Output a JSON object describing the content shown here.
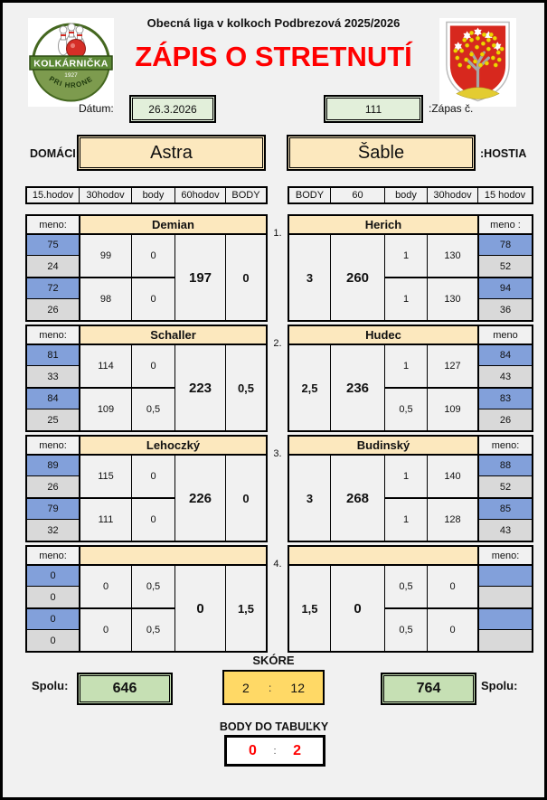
{
  "header": {
    "league_title": "Obecná liga v kolkoch Podbrezová 2025/2026",
    "title": "ZÁPIS O STRETNUTÍ"
  },
  "home_logo": {
    "name": "KOLKÁRNIČKA",
    "year": "1927",
    "subtitle": "PRI HRONE"
  },
  "match_info": {
    "date_label": "Dátum:",
    "date_value": "26.3.2026",
    "match_number": "111",
    "match_number_label": ":Zápas č."
  },
  "teams": {
    "home_label": "DOMÁCI:",
    "home_name": "Astra",
    "away_name": "Šable",
    "away_label": ":HOSTIA"
  },
  "column_headers": {
    "left": [
      "15.hodov",
      "30hodov",
      "body",
      "60hodov",
      "BODY"
    ],
    "right": [
      "BODY",
      "60",
      "body",
      "30hodov",
      "15 hodov"
    ]
  },
  "rounds": [
    {
      "number": "1.",
      "home": {
        "meno_label": "meno:",
        "name": "Demian",
        "t15": [
          "75",
          "24",
          "72",
          "26"
        ],
        "t30": [
          "99",
          "98"
        ],
        "body": [
          "0",
          "0"
        ],
        "t60": "197",
        "points": "0"
      },
      "away": {
        "meno_label": "meno :",
        "name": "Herich",
        "points": "3",
        "t60": "260",
        "body": [
          "1",
          "1"
        ],
        "t30": [
          "130",
          "130"
        ],
        "t15": [
          "78",
          "52",
          "94",
          "36"
        ]
      }
    },
    {
      "number": "2.",
      "home": {
        "meno_label": "meno:",
        "name": "Schaller",
        "t15": [
          "81",
          "33",
          "84",
          "25"
        ],
        "t30": [
          "114",
          "109"
        ],
        "body": [
          "0",
          "0,5"
        ],
        "t60": "223",
        "points": "0,5"
      },
      "away": {
        "meno_label": "meno",
        "name": "Hudec",
        "points": "2,5",
        "t60": "236",
        "body": [
          "1",
          "0,5"
        ],
        "t30": [
          "127",
          "109"
        ],
        "t15": [
          "84",
          "43",
          "83",
          "26"
        ]
      }
    },
    {
      "number": "3.",
      "home": {
        "meno_label": "meno:",
        "name": "Lehoczký",
        "t15": [
          "89",
          "26",
          "79",
          "32"
        ],
        "t30": [
          "115",
          "111"
        ],
        "body": [
          "0",
          "0"
        ],
        "t60": "226",
        "points": "0"
      },
      "away": {
        "meno_label": "meno:",
        "name": "Budinský",
        "points": "3",
        "t60": "268",
        "body": [
          "1",
          "1"
        ],
        "t30": [
          "140",
          "128"
        ],
        "t15": [
          "88",
          "52",
          "85",
          "43"
        ]
      }
    },
    {
      "number": "4.",
      "home": {
        "meno_label": "meno:",
        "name": "",
        "t15": [
          "0",
          "0",
          "0",
          "0"
        ],
        "t30": [
          "0",
          "0"
        ],
        "body": [
          "0,5",
          "0,5"
        ],
        "t60": "0",
        "points": "1,5"
      },
      "away": {
        "meno_label": "meno:",
        "name": "",
        "points": "1,5",
        "t60": "0",
        "body": [
          "0,5",
          "0,5"
        ],
        "t30": [
          "0",
          "0"
        ],
        "t15": [
          "",
          "",
          "",
          ""
        ]
      }
    }
  ],
  "totals": {
    "home_label": "Spolu:",
    "home_total": "646",
    "away_total": "764",
    "away_label": "Spolu:"
  },
  "score": {
    "label": "SKÓRE",
    "home": "2",
    "separator": ":",
    "away": "12"
  },
  "table_points": {
    "label": "BODY DO TABUĽKY",
    "home": "0",
    "separator": ":",
    "away": "2"
  },
  "colors": {
    "accent_blue": "#82A0DA",
    "row_gray": "#D9D9D9",
    "name_yellow": "#FCE8BE",
    "score_gold": "#FFD966",
    "total_green": "#C6E0B4",
    "date_green": "#E2EFDA",
    "title_red": "#FF0000"
  }
}
